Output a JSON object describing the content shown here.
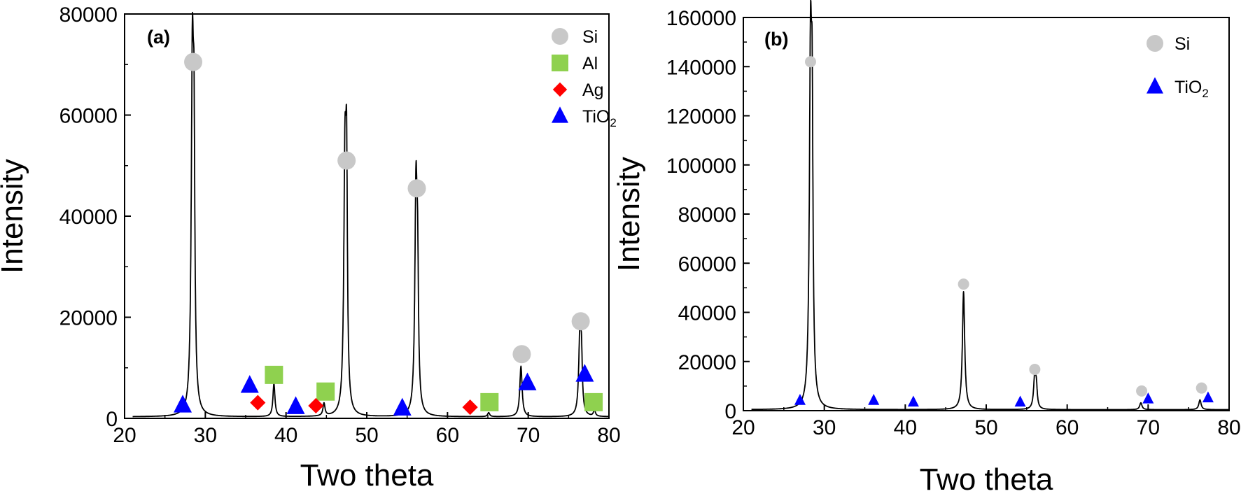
{
  "chart_data": [
    {
      "type": "line",
      "panel_label": "(a)",
      "xlabel": "Two theta",
      "ylabel": "Intensity",
      "xlim": [
        20,
        80
      ],
      "ylim": [
        0,
        80000
      ],
      "xticks": [
        20,
        30,
        40,
        50,
        60,
        70,
        80
      ],
      "yticks": [
        0,
        20000,
        40000,
        60000,
        80000
      ],
      "grid": false,
      "legend_position": "top-right",
      "legend": [
        {
          "label": "Si",
          "marker": "circle",
          "color": "#c8c8c8"
        },
        {
          "label": "Al",
          "marker": "square",
          "color": "#8fd14f"
        },
        {
          "label": "Ag",
          "marker": "diamond",
          "color": "#ff0000"
        },
        {
          "label": "TiO",
          "sub": "2",
          "marker": "triangle",
          "color": "#0000ff"
        }
      ],
      "baseline": 300,
      "peaks": [
        {
          "x": 28.4,
          "y": 68000,
          "w": 0.17
        },
        {
          "x": 28.6,
          "y": 42000,
          "w": 0.12
        },
        {
          "x": 38.5,
          "y": 6500,
          "w": 0.15
        },
        {
          "x": 44.7,
          "y": 2500,
          "w": 0.15
        },
        {
          "x": 47.3,
          "y": 48500,
          "w": 0.17
        },
        {
          "x": 47.5,
          "y": 40000,
          "w": 0.12
        },
        {
          "x": 56.1,
          "y": 44500,
          "w": 0.17
        },
        {
          "x": 56.3,
          "y": 22000,
          "w": 0.12
        },
        {
          "x": 65.1,
          "y": 800,
          "w": 0.15
        },
        {
          "x": 69.1,
          "y": 10000,
          "w": 0.17
        },
        {
          "x": 76.4,
          "y": 16000,
          "w": 0.17
        },
        {
          "x": 76.6,
          "y": 9500,
          "w": 0.12
        },
        {
          "x": 78.2,
          "y": 1200,
          "w": 0.15
        }
      ],
      "markers": [
        {
          "phase": "Si",
          "x": 28.5,
          "y": 70500
        },
        {
          "phase": "Si",
          "x": 47.5,
          "y": 51000
        },
        {
          "phase": "Si",
          "x": 56.2,
          "y": 45500
        },
        {
          "phase": "Si",
          "x": 69.2,
          "y": 12700
        },
        {
          "phase": "Si",
          "x": 76.5,
          "y": 19200
        },
        {
          "phase": "Al",
          "x": 38.5,
          "y": 8600
        },
        {
          "phase": "Al",
          "x": 44.9,
          "y": 5300
        },
        {
          "phase": "Al",
          "x": 65.2,
          "y": 3200
        },
        {
          "phase": "Al",
          "x": 78.1,
          "y": 3200
        },
        {
          "phase": "Ag",
          "x": 36.5,
          "y": 3100
        },
        {
          "phase": "Ag",
          "x": 43.7,
          "y": 2500
        },
        {
          "phase": "Ag",
          "x": 62.8,
          "y": 2200
        },
        {
          "phase": "TiO2",
          "x": 27.2,
          "y": 2600
        },
        {
          "phase": "TiO2",
          "x": 35.5,
          "y": 6500
        },
        {
          "phase": "TiO2",
          "x": 41.2,
          "y": 2300
        },
        {
          "phase": "TiO2",
          "x": 54.4,
          "y": 2000
        },
        {
          "phase": "TiO2",
          "x": 69.9,
          "y": 7000
        },
        {
          "phase": "TiO2",
          "x": 77.0,
          "y": 8700
        }
      ]
    },
    {
      "type": "line",
      "panel_label": "(b)",
      "xlabel": "Two theta",
      "ylabel": "Intensity",
      "xlim": [
        20,
        80
      ],
      "ylim": [
        0,
        160000
      ],
      "xticks": [
        20,
        30,
        40,
        50,
        60,
        70,
        80
      ],
      "yticks": [
        0,
        20000,
        40000,
        60000,
        80000,
        100000,
        120000,
        140000,
        160000
      ],
      "grid": false,
      "legend_position": "top-right",
      "legend": [
        {
          "label": "Si",
          "marker": "circle",
          "color": "#c8c8c8"
        },
        {
          "label": "TiO",
          "sub": "2",
          "marker": "triangle",
          "color": "#0000ff"
        }
      ],
      "baseline": 400,
      "peaks": [
        {
          "x": 28.3,
          "y": 140000,
          "w": 0.17
        },
        {
          "x": 28.5,
          "y": 93000,
          "w": 0.12
        },
        {
          "x": 47.2,
          "y": 48000,
          "w": 0.17
        },
        {
          "x": 56.0,
          "y": 14000,
          "w": 0.17
        },
        {
          "x": 56.2,
          "y": 7000,
          "w": 0.12
        },
        {
          "x": 69.1,
          "y": 2800,
          "w": 0.17
        },
        {
          "x": 76.4,
          "y": 4000,
          "w": 0.17
        }
      ],
      "markers": [
        {
          "phase": "Si",
          "x": 28.3,
          "y": 142000
        },
        {
          "phase": "Si",
          "x": 47.2,
          "y": 51500
        },
        {
          "phase": "Si",
          "x": 56.0,
          "y": 16800
        },
        {
          "phase": "Si",
          "x": 69.2,
          "y": 8000
        },
        {
          "phase": "Si",
          "x": 76.6,
          "y": 9200
        },
        {
          "phase": "TiO2",
          "x": 27.0,
          "y": 4200
        },
        {
          "phase": "TiO2",
          "x": 36.1,
          "y": 4200
        },
        {
          "phase": "TiO2",
          "x": 41.0,
          "y": 3500
        },
        {
          "phase": "TiO2",
          "x": 54.2,
          "y": 3500
        },
        {
          "phase": "TiO2",
          "x": 70.0,
          "y": 4800
        },
        {
          "phase": "TiO2",
          "x": 77.4,
          "y": 5200
        }
      ]
    }
  ]
}
